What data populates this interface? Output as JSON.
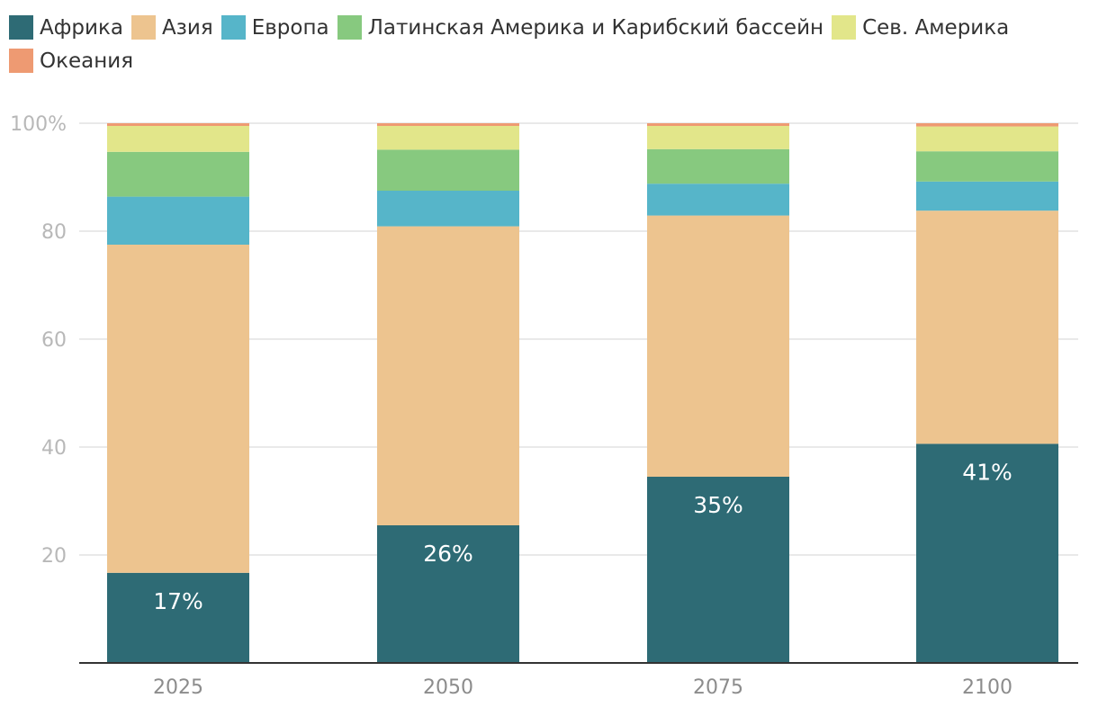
{
  "chart_data": {
    "type": "bar",
    "stacked": true,
    "categories": [
      "2025",
      "2050",
      "2075",
      "2100"
    ],
    "series": [
      {
        "name": "Африка",
        "color": "#2e6b75",
        "values": [
          16.7,
          25.5,
          34.5,
          40.6
        ]
      },
      {
        "name": "Азия",
        "color": "#edc48f",
        "values": [
          60.8,
          55.4,
          48.4,
          43.2
        ]
      },
      {
        "name": "Европа",
        "color": "#56b5c9",
        "values": [
          8.9,
          6.6,
          5.9,
          5.4
        ]
      },
      {
        "name": "Латинская Америка и Карибский бассейн",
        "color": "#87c97f",
        "values": [
          8.3,
          7.6,
          6.4,
          5.6
        ]
      },
      {
        "name": "Сев. Америка",
        "color": "#e2e68a",
        "values": [
          4.8,
          4.4,
          4.3,
          4.6
        ]
      },
      {
        "name": "Океания",
        "color": "#ee9a72",
        "values": [
          0.5,
          0.5,
          0.5,
          0.6
        ]
      }
    ],
    "data_labels": [
      "17%",
      "26%",
      "35%",
      "41%"
    ],
    "ylim": [
      0,
      100
    ],
    "yticks": [
      {
        "value": 20,
        "label": "20"
      },
      {
        "value": 40,
        "label": "40"
      },
      {
        "value": 60,
        "label": "60"
      },
      {
        "value": 80,
        "label": "80"
      },
      {
        "value": 100,
        "label": "100%"
      }
    ],
    "grid": true,
    "legend_position": "top-left",
    "xlabel": "",
    "ylabel": ""
  }
}
